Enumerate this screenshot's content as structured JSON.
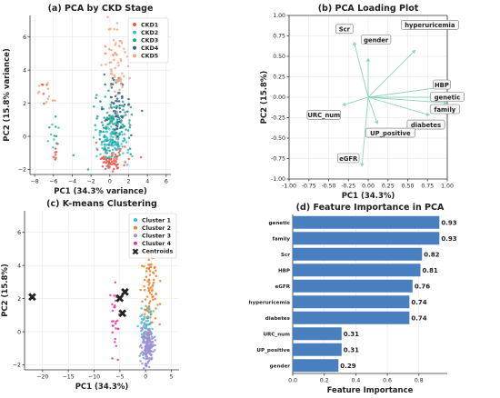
{
  "chart_data": [
    {
      "type": "scatter",
      "title": "(a) PCA by CKD Stage",
      "xlabel": "PC1 (34.3% variance)",
      "ylabel": "PC2 (15.8% variance)",
      "xlim": [
        -8.5,
        6.5
      ],
      "ylim": [
        -2.3,
        7.3
      ],
      "xticks": [
        -8,
        -6,
        -4,
        -2,
        0,
        2,
        4,
        6
      ],
      "yticks": [
        -2,
        0,
        2,
        4,
        6
      ],
      "grid": true,
      "legend_position": "top-right",
      "series": [
        {
          "name": "CKD1",
          "color": "#e8594a",
          "clusters": [
            {
              "cx": 0.2,
              "cy": -1.4,
              "sx": 0.8,
              "sy": 0.35,
              "n": 70
            },
            {
              "cx": -5.8,
              "cy": -1.0,
              "sx": 0.2,
              "sy": 0.5,
              "n": 8
            },
            {
              "cx": -7.2,
              "cy": 2.3,
              "sx": 0.2,
              "sy": 0.6,
              "n": 5
            }
          ]
        },
        {
          "name": "CKD2",
          "color": "#3cbfcf",
          "clusters": [
            {
              "cx": 0.3,
              "cy": -0.3,
              "sx": 0.9,
              "sy": 0.6,
              "n": 110
            },
            {
              "cx": -5.9,
              "cy": 0.0,
              "sx": 0.3,
              "sy": 0.4,
              "n": 6
            }
          ]
        },
        {
          "name": "CKD3",
          "color": "#1fa38f",
          "clusters": [
            {
              "cx": 0.4,
              "cy": 0.8,
              "sx": 1.0,
              "sy": 0.8,
              "n": 120
            },
            {
              "cx": -6.0,
              "cy": 0.5,
              "sx": 0.3,
              "sy": 0.4,
              "n": 6
            }
          ]
        },
        {
          "name": "CKD4",
          "color": "#2e5f8a",
          "clusters": [
            {
              "cx": 0.9,
              "cy": 1.7,
              "sx": 0.8,
              "sy": 0.9,
              "n": 55
            }
          ]
        },
        {
          "name": "CKD5",
          "color": "#f4a582",
          "clusters": [
            {
              "cx": 0.7,
              "cy": 4.3,
              "sx": 0.7,
              "sy": 1.4,
              "n": 70
            },
            {
              "cx": -6.8,
              "cy": 2.6,
              "sx": 0.6,
              "sy": 0.5,
              "n": 10
            }
          ]
        }
      ]
    },
    {
      "type": "line",
      "title": "(b) PCA Loading Plot",
      "xlabel": "PC1 (34.3%)",
      "ylabel": "PC2 (15.8%)",
      "xlim": [
        -1.0,
        1.0
      ],
      "ylim": [
        -1.0,
        1.0
      ],
      "xticks": [
        -1.0,
        -0.75,
        -0.5,
        -0.25,
        0.0,
        0.25,
        0.5,
        0.75,
        1.0
      ],
      "yticks": [
        -1.0,
        -0.75,
        -0.5,
        -0.25,
        0.0,
        0.25,
        0.5,
        0.75,
        1.0
      ],
      "tick_labels": [
        "-1.00",
        "-0.75",
        "-0.50",
        "-0.25",
        "0.00",
        "0.25",
        "0.50",
        "0.75",
        "1.00"
      ],
      "grid": true,
      "loadings": [
        {
          "name": "Scr",
          "x": -0.18,
          "y": 0.68
        },
        {
          "name": "gender",
          "x": 0.0,
          "y": 0.48
        },
        {
          "name": "hyperuricemia",
          "x": 0.6,
          "y": 0.58
        },
        {
          "name": "HBP",
          "x": 0.98,
          "y": 0.13
        },
        {
          "name": "genetic",
          "x": 1.01,
          "y": 0.0
        },
        {
          "name": "family",
          "x": 1.0,
          "y": -0.07
        },
        {
          "name": "diabetes",
          "x": 0.78,
          "y": -0.22
        },
        {
          "name": "URC_num",
          "x": -0.33,
          "y": -0.1
        },
        {
          "name": "UP_positive",
          "x": 0.12,
          "y": -0.33
        },
        {
          "name": "eGFR",
          "x": -0.08,
          "y": -0.85
        }
      ]
    },
    {
      "type": "scatter",
      "title": "(c) K-means Clustering",
      "xlabel": "PC1 (34.3%)",
      "ylabel": "PC2 (15.8%)",
      "xlim": [
        -23.5,
        6.5
      ],
      "ylim": [
        -2.3,
        7.3
      ],
      "xticks": [
        -20,
        -15,
        -10,
        -5,
        0,
        5
      ],
      "yticks": [
        -2,
        0,
        2,
        4,
        6
      ],
      "grid": true,
      "legend_position": "top-right",
      "series": [
        {
          "name": "Cluster 1",
          "color": "#3cbfcf",
          "clusters": [
            {
              "cx": 0.2,
              "cy": 0.3,
              "sx": 0.7,
              "sy": 0.8,
              "n": 60
            }
          ]
        },
        {
          "name": "Cluster 2",
          "color": "#e8822a",
          "clusters": [
            {
              "cx": 1.0,
              "cy": 3.0,
              "sx": 0.8,
              "sy": 1.6,
              "n": 90
            }
          ]
        },
        {
          "name": "Cluster 3",
          "color": "#9a8fd0",
          "clusters": [
            {
              "cx": 0.3,
              "cy": -0.8,
              "sx": 0.6,
              "sy": 0.6,
              "n": 150
            }
          ]
        },
        {
          "name": "Cluster 4",
          "color": "#e6399b",
          "clusters": [
            {
              "cx": -6.0,
              "cy": 1.0,
              "sx": 0.4,
              "sy": 1.0,
              "n": 30
            }
          ]
        }
      ],
      "centroids": {
        "name": "Centroids",
        "points": [
          [
            -22.0,
            2.1
          ],
          [
            -4.0,
            2.4
          ],
          [
            -5.0,
            2.0
          ],
          [
            -4.5,
            1.1
          ]
        ]
      }
    },
    {
      "type": "bar",
      "orientation": "horizontal",
      "title": "(d) Feature Importance in PCA",
      "xlabel": "Feature Importance",
      "ylabel": "",
      "xlim": [
        0.0,
        0.98
      ],
      "xticks": [
        0.0,
        0.2,
        0.4,
        0.6,
        0.8
      ],
      "xtick_labels": [
        "0.0",
        "0.2",
        "0.4",
        "0.6",
        "0.8"
      ],
      "grid": true,
      "color": "#4a7fbf",
      "categories": [
        "genetic",
        "family",
        "Scr",
        "HBP",
        "eGFR",
        "hyperuricemia",
        "diabetes",
        "URC_num",
        "UP_positive",
        "gender"
      ],
      "values": [
        0.93,
        0.93,
        0.82,
        0.81,
        0.76,
        0.74,
        0.74,
        0.31,
        0.31,
        0.29
      ],
      "value_labels": [
        "0.93",
        "0.93",
        "0.82",
        "0.81",
        "0.76",
        "0.74",
        "0.74",
        "0.31",
        "0.31",
        "0.29"
      ]
    }
  ]
}
